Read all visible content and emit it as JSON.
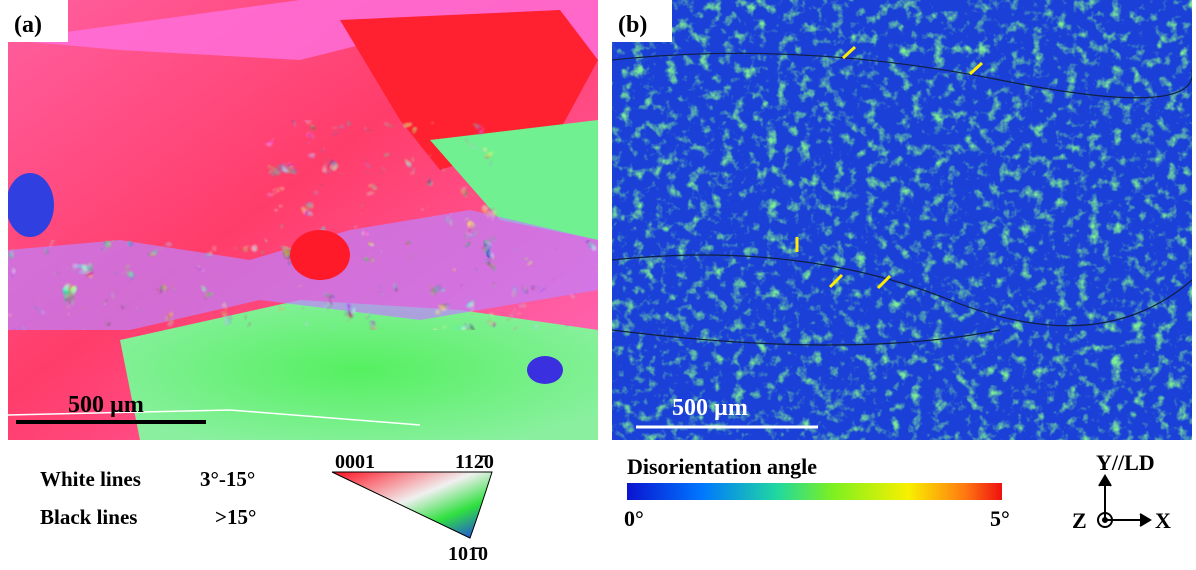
{
  "panel_a": {
    "label": "(a)",
    "scale_bar": "500 µm"
  },
  "panel_b": {
    "label": "(b)",
    "scale_bar": "500 µm"
  },
  "legend_a": {
    "white_lines": "White lines",
    "white_range": "3°-15°",
    "black_lines": "Black lines",
    "black_range": ">15°"
  },
  "ipf_key": {
    "top_left": "0001",
    "top_right": "112̄0",
    "bottom": "101̄0"
  },
  "colorbar": {
    "title": "Disorientation angle",
    "min": "0°",
    "max": "5°"
  },
  "axes": {
    "y": "Y//LD",
    "z": "Z",
    "x": "X"
  }
}
